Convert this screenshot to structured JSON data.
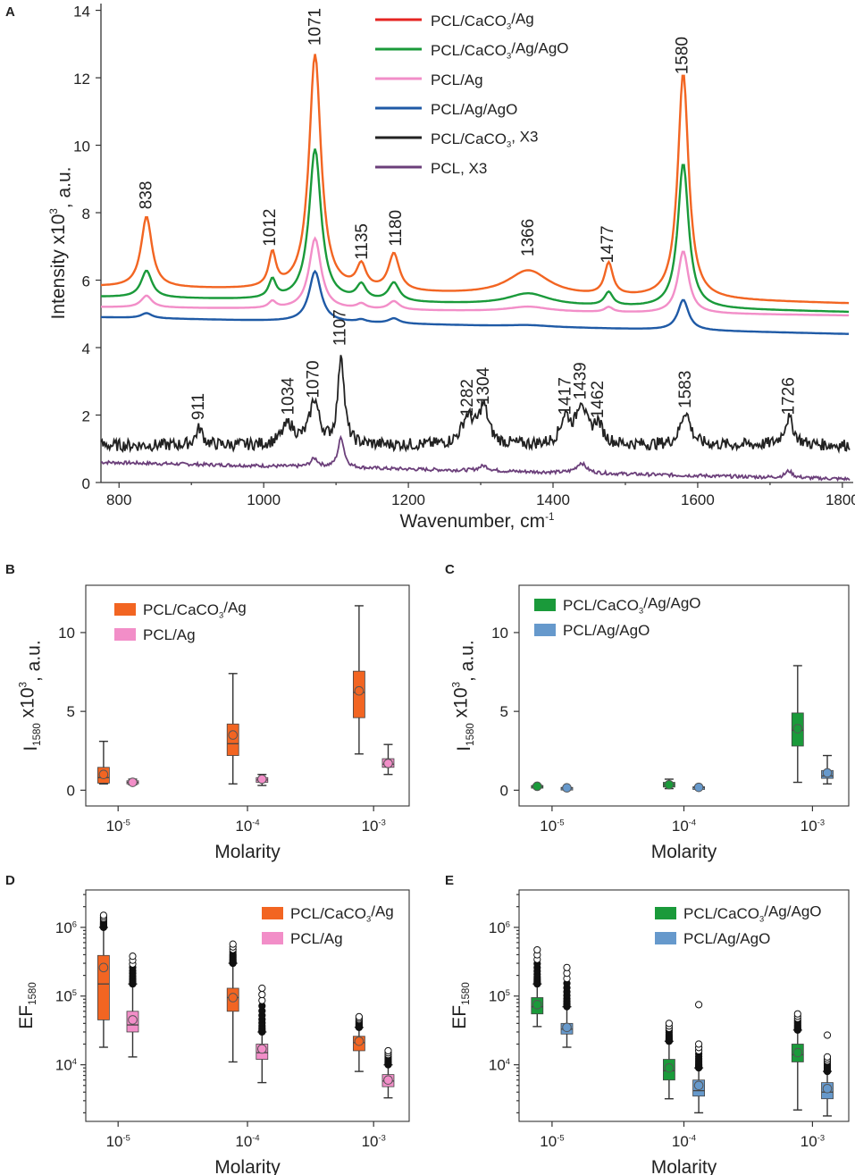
{
  "chart_data": [
    {
      "panel": "A",
      "type": "line",
      "xlabel": "Wavenumber, cm",
      "xlabel_sup": "-1",
      "ylabel_pre": "Intensity x10",
      "ylabel_sup": "3",
      "ylabel_post": ", a.u.",
      "xlim": [
        775,
        1815
      ],
      "ylim": [
        0,
        14.2
      ],
      "xticks": [
        800,
        1000,
        1200,
        1400,
        1600,
        1800
      ],
      "yticks": [
        0,
        2,
        4,
        6,
        8,
        10,
        12,
        14
      ],
      "legend_position": "top-center",
      "series": [
        {
          "name": "PCL/CaCO3/Ag",
          "label_main": "PCL/CaCO",
          "label_sub": "3",
          "label_post": "/Ag",
          "legend_color": "#e52421",
          "color": "#f26522",
          "baseline": 5.8,
          "end": 5.3,
          "peaks": [
            [
              838,
              2.1,
              9
            ],
            [
              1012,
              1.0,
              6
            ],
            [
              1071,
              7.0,
              10
            ],
            [
              1135,
              0.7,
              8
            ],
            [
              1180,
              1.1,
              9
            ],
            [
              1366,
              0.75,
              35
            ],
            [
              1477,
              0.95,
              7
            ],
            [
              1580,
              6.7,
              9
            ]
          ]
        },
        {
          "name": "PCL/CaCO3/Ag/AgO",
          "label_main": "PCL/CaCO",
          "label_sub": "3",
          "label_post": "/Ag/AgO",
          "legend_color": "#1a9a3a",
          "color": "#1a9a3a",
          "baseline": 5.5,
          "end": 5.05,
          "peaks": [
            [
              838,
              0.8,
              9
            ],
            [
              1012,
              0.55,
              6
            ],
            [
              1071,
              4.5,
              10
            ],
            [
              1135,
              0.45,
              8
            ],
            [
              1180,
              0.55,
              9
            ],
            [
              1366,
              0.35,
              35
            ],
            [
              1477,
              0.4,
              7
            ],
            [
              1580,
              4.3,
              9
            ]
          ]
        },
        {
          "name": "PCL/Ag",
          "label_main": "PCL/Ag",
          "label_sub": "",
          "label_post": "",
          "legend_color": "#f28ec8",
          "color": "#f28ec8",
          "baseline": 5.2,
          "end": 4.95,
          "peaks": [
            [
              838,
              0.35,
              9
            ],
            [
              1012,
              0.2,
              6
            ],
            [
              1071,
              2.1,
              10
            ],
            [
              1135,
              0.15,
              8
            ],
            [
              1180,
              0.25,
              9
            ],
            [
              1366,
              0.15,
              35
            ],
            [
              1477,
              0.15,
              7
            ],
            [
              1580,
              1.85,
              9
            ]
          ]
        },
        {
          "name": "PCL/Ag/AgO",
          "label_main": "PCL/Ag/AgO",
          "label_sub": "",
          "label_post": "",
          "legend_color": "#1f5aa6",
          "color": "#1f5aa6",
          "baseline": 4.9,
          "end": 4.4,
          "peaks": [
            [
              838,
              0.15,
              9
            ],
            [
              1071,
              1.5,
              10
            ],
            [
              1135,
              0.08,
              8
            ],
            [
              1180,
              0.15,
              9
            ],
            [
              1366,
              0.05,
              35
            ],
            [
              1580,
              0.9,
              9
            ]
          ]
        },
        {
          "name": "PCL/CaCO3, X3",
          "label_main": "PCL/CaCO",
          "label_sub": "3",
          "label_post": ", X3",
          "legend_color": "#222222",
          "color": "#222222",
          "baseline": 1.1,
          "end": 1.1,
          "noise": 0.18,
          "peaks": [
            [
              911,
              0.5,
              6
            ],
            [
              1034,
              0.6,
              10
            ],
            [
              1070,
              1.3,
              8
            ],
            [
              1107,
              2.7,
              5
            ],
            [
              1282,
              0.8,
              10
            ],
            [
              1304,
              1.1,
              8
            ],
            [
              1417,
              0.8,
              8
            ],
            [
              1439,
              1.2,
              8
            ],
            [
              1462,
              0.6,
              8
            ],
            [
              1583,
              1.0,
              8
            ],
            [
              1726,
              0.8,
              8
            ]
          ]
        },
        {
          "name": "PCL, X3",
          "label_main": "PCL, X3",
          "label_sub": "",
          "label_post": "",
          "legend_color": "#6b3f7a",
          "color": "#6b3f7a",
          "baseline": 0.6,
          "end": 0.1,
          "noise": 0.05,
          "peaks": [
            [
              1070,
              0.25,
              6
            ],
            [
              1107,
              0.9,
              5
            ],
            [
              1304,
              0.15,
              8
            ],
            [
              1439,
              0.3,
              8
            ],
            [
              1726,
              0.2,
              6
            ]
          ]
        }
      ],
      "peak_labels": [
        {
          "text": "838",
          "x": 845,
          "y": 8.1
        },
        {
          "text": "1012",
          "x": 1016,
          "y": 7.0
        },
        {
          "text": "1071",
          "x": 1078,
          "y": 12.95
        },
        {
          "text": "1135",
          "x": 1143,
          "y": 6.6
        },
        {
          "text": "1180",
          "x": 1190,
          "y": 7.0
        },
        {
          "text": "1366",
          "x": 1373,
          "y": 6.7
        },
        {
          "text": "1477",
          "x": 1483,
          "y": 6.5
        },
        {
          "text": "1580",
          "x": 1586,
          "y": 12.1
        },
        {
          "text": "911",
          "x": 917,
          "y": 1.85
        },
        {
          "text": "1034",
          "x": 1041,
          "y": 2.0
        },
        {
          "text": "1070",
          "x": 1076,
          "y": 2.5
        },
        {
          "text": "1107",
          "x": 1113,
          "y": 4.05
        },
        {
          "text": "1282",
          "x": 1289,
          "y": 1.95
        },
        {
          "text": "1304",
          "x": 1311,
          "y": 2.3
        },
        {
          "text": "1417",
          "x": 1424,
          "y": 2.0
        },
        {
          "text": "1439",
          "x": 1445,
          "y": 2.45
        },
        {
          "text": "1462",
          "x": 1469,
          "y": 1.9
        },
        {
          "text": "1583",
          "x": 1590,
          "y": 2.2
        },
        {
          "text": "1726",
          "x": 1733,
          "y": 2.0
        }
      ]
    },
    {
      "panel": "B",
      "type": "box",
      "xlabel": "Molarity",
      "ylabel_pre": "I",
      "ylabel_sub": "1580",
      "ylabel_mid": " x10",
      "ylabel_sup": "3",
      "ylabel_post": ", a.u.",
      "scale": "linear",
      "ylim": [
        -1,
        13
      ],
      "yticks": [
        0,
        5,
        10
      ],
      "xtick_labels": [
        {
          "base": "10",
          "exp": "-5"
        },
        {
          "base": "10",
          "exp": "-4"
        },
        {
          "base": "10",
          "exp": "-3"
        }
      ],
      "legend_position": "top-left",
      "series": [
        {
          "name": "PCL/CaCO3/Ag",
          "label_main": "PCL/CaCO",
          "label_sub": "3",
          "label_post": "/Ag",
          "color": "#f26522",
          "boxes": [
            {
              "min": 0.4,
              "q1": 0.45,
              "median": 0.8,
              "q3": 1.45,
              "max": 3.1,
              "mean": 1.0
            },
            {
              "min": 0.4,
              "q1": 2.2,
              "median": 2.95,
              "q3": 4.2,
              "max": 7.4,
              "mean": 3.5
            },
            {
              "min": 2.3,
              "q1": 4.6,
              "median": 6.2,
              "q3": 7.55,
              "max": 11.7,
              "mean": 6.3
            }
          ]
        },
        {
          "name": "PCL/Ag",
          "label_main": "PCL/Ag",
          "label_sub": "",
          "label_post": "",
          "color": "#f28ec8",
          "boxes": [
            {
              "min": 0.35,
              "q1": 0.4,
              "median": 0.5,
              "q3": 0.6,
              "max": 0.7,
              "mean": 0.5
            },
            {
              "min": 0.3,
              "q1": 0.5,
              "median": 0.65,
              "q3": 0.8,
              "max": 1.0,
              "mean": 0.7
            },
            {
              "min": 1.0,
              "q1": 1.45,
              "median": 1.65,
              "q3": 2.0,
              "max": 2.9,
              "mean": 1.7
            }
          ]
        }
      ]
    },
    {
      "panel": "C",
      "type": "box",
      "xlabel": "Molarity",
      "ylabel_pre": "I",
      "ylabel_sub": "1580",
      "ylabel_mid": " x10",
      "ylabel_sup": "3",
      "ylabel_post": ", a.u.",
      "scale": "linear",
      "ylim": [
        -1,
        13
      ],
      "yticks": [
        0,
        5,
        10
      ],
      "xtick_labels": [
        {
          "base": "10",
          "exp": "-5"
        },
        {
          "base": "10",
          "exp": "-4"
        },
        {
          "base": "10",
          "exp": "-3"
        }
      ],
      "legend_position": "top-left",
      "series": [
        {
          "name": "PCL/CaCO3/Ag/AgO",
          "label_main": "PCL/CaCO",
          "label_sub": "3",
          "label_post": "/Ag/AgO",
          "color": "#1a9a3a",
          "boxes": [
            {
              "min": 0.15,
              "q1": 0.2,
              "median": 0.25,
              "q3": 0.3,
              "max": 0.35,
              "mean": 0.25
            },
            {
              "min": 0.1,
              "q1": 0.2,
              "median": 0.35,
              "q3": 0.5,
              "max": 0.7,
              "mean": 0.35
            },
            {
              "min": 0.5,
              "q1": 2.8,
              "median": 3.8,
              "q3": 4.9,
              "max": 7.9,
              "mean": 3.9
            }
          ]
        },
        {
          "name": "PCL/Ag/AgO",
          "label_main": "PCL/Ag/AgO",
          "label_sub": "",
          "label_post": "",
          "color": "#6699cc",
          "boxes": [
            {
              "min": 0.1,
              "q1": 0.12,
              "median": 0.15,
              "q3": 0.18,
              "max": 0.2,
              "mean": 0.15
            },
            {
              "min": 0.1,
              "q1": 0.13,
              "median": 0.18,
              "q3": 0.22,
              "max": 0.25,
              "mean": 0.18
            },
            {
              "min": 0.4,
              "q1": 0.75,
              "median": 0.9,
              "q3": 1.25,
              "max": 2.2,
              "mean": 1.1
            }
          ]
        }
      ]
    },
    {
      "panel": "D",
      "type": "box",
      "xlabel": "Molarity",
      "ylabel_pre": "EF",
      "ylabel_sub": "1580",
      "scale": "log",
      "ylim": [
        1500,
        3500000
      ],
      "yticks": [
        {
          "value": 10000,
          "base": "10",
          "exp": "4"
        },
        {
          "value": 100000,
          "base": "10",
          "exp": "5"
        },
        {
          "value": 1000000,
          "base": "10",
          "exp": "6"
        }
      ],
      "xtick_labels": [
        {
          "base": "10",
          "exp": "-5"
        },
        {
          "base": "10",
          "exp": "-4"
        },
        {
          "base": "10",
          "exp": "-3"
        }
      ],
      "legend_position": "top-right",
      "series": [
        {
          "name": "PCL/CaCO3/Ag",
          "label_main": "PCL/CaCO",
          "label_sub": "3",
          "label_post": "/Ag",
          "color": "#f26522",
          "boxes": [
            {
              "min": 18000,
              "q1": 45000,
              "median": 150000,
              "q3": 390000,
              "max": 1000000,
              "mean": 260000,
              "outliers_from": 1000000,
              "outliers_to": 1500000
            },
            {
              "min": 11000,
              "q1": 60000,
              "median": 95000,
              "q3": 130000,
              "max": 300000,
              "mean": 95000,
              "outliers_from": 300000,
              "outliers_to": 570000
            },
            {
              "min": 8000,
              "q1": 16000,
              "median": 21000,
              "q3": 26000,
              "max": 35000,
              "mean": 22000,
              "outliers_from": 35000,
              "outliers_to": 50000
            }
          ]
        },
        {
          "name": "PCL/Ag",
          "label_main": "PCL/Ag",
          "label_sub": "",
          "label_post": "",
          "color": "#f28ec8",
          "boxes": [
            {
              "min": 13000,
              "q1": 30000,
              "median": 38000,
              "q3": 60000,
              "max": 150000,
              "mean": 45000,
              "outliers_from": 150000,
              "outliers_to": 380000
            },
            {
              "min": 5500,
              "q1": 12000,
              "median": 15000,
              "q3": 20000,
              "max": 30000,
              "mean": 17000,
              "outliers_from": 30000,
              "outliers_to": 130000
            },
            {
              "min": 3300,
              "q1": 4800,
              "median": 5800,
              "q3": 7200,
              "max": 10000,
              "mean": 6000,
              "outliers_from": 10000,
              "outliers_to": 16000
            }
          ]
        }
      ]
    },
    {
      "panel": "E",
      "type": "box",
      "xlabel": "Molarity",
      "ylabel_pre": "EF",
      "ylabel_sub": "1580",
      "scale": "log",
      "ylim": [
        1500,
        3500000
      ],
      "yticks": [
        {
          "value": 10000,
          "base": "10",
          "exp": "4"
        },
        {
          "value": 100000,
          "base": "10",
          "exp": "5"
        },
        {
          "value": 1000000,
          "base": "10",
          "exp": "6"
        }
      ],
      "xtick_labels": [
        {
          "base": "10",
          "exp": "-5"
        },
        {
          "base": "10",
          "exp": "-4"
        },
        {
          "base": "10",
          "exp": "-3"
        }
      ],
      "legend_position": "top-right",
      "series": [
        {
          "name": "PCL/CaCO3/Ag/AgO",
          "label_main": "PCL/CaCO",
          "label_sub": "3",
          "label_post": "/Ag/AgO",
          "color": "#1a9a3a",
          "boxes": [
            {
              "min": 36000,
              "q1": 55000,
              "median": 70000,
              "q3": 95000,
              "max": 150000,
              "mean": 75000,
              "outliers_from": 150000,
              "outliers_to": 470000
            },
            {
              "min": 3200,
              "q1": 6000,
              "median": 8200,
              "q3": 12000,
              "max": 22000,
              "mean": 9000,
              "outliers_from": 22000,
              "outliers_to": 40000
            },
            {
              "min": 2200,
              "q1": 11000,
              "median": 14000,
              "q3": 20000,
              "max": 32000,
              "mean": 15000,
              "outliers_from": 32000,
              "outliers_to": 55000
            }
          ]
        },
        {
          "name": "PCL/Ag/AgO",
          "label_main": "PCL/Ag/AgO",
          "label_sub": "",
          "label_post": "",
          "color": "#6699cc",
          "boxes": [
            {
              "min": 18000,
              "q1": 28000,
              "median": 33000,
              "q3": 40000,
              "max": 70000,
              "mean": 35000,
              "outliers_from": 70000,
              "outliers_to": 260000
            },
            {
              "min": 2000,
              "q1": 3500,
              "median": 4200,
              "q3": 6000,
              "max": 9000,
              "mean": 5000,
              "outliers_from": 9000,
              "outliers_to": 20000,
              "extra_outlier": 75000
            },
            {
              "min": 1800,
              "q1": 3200,
              "median": 4000,
              "q3": 5500,
              "max": 8000,
              "mean": 4500,
              "outliers_from": 8000,
              "outliers_to": 13000,
              "extra_outlier": 27000
            }
          ]
        }
      ]
    }
  ]
}
